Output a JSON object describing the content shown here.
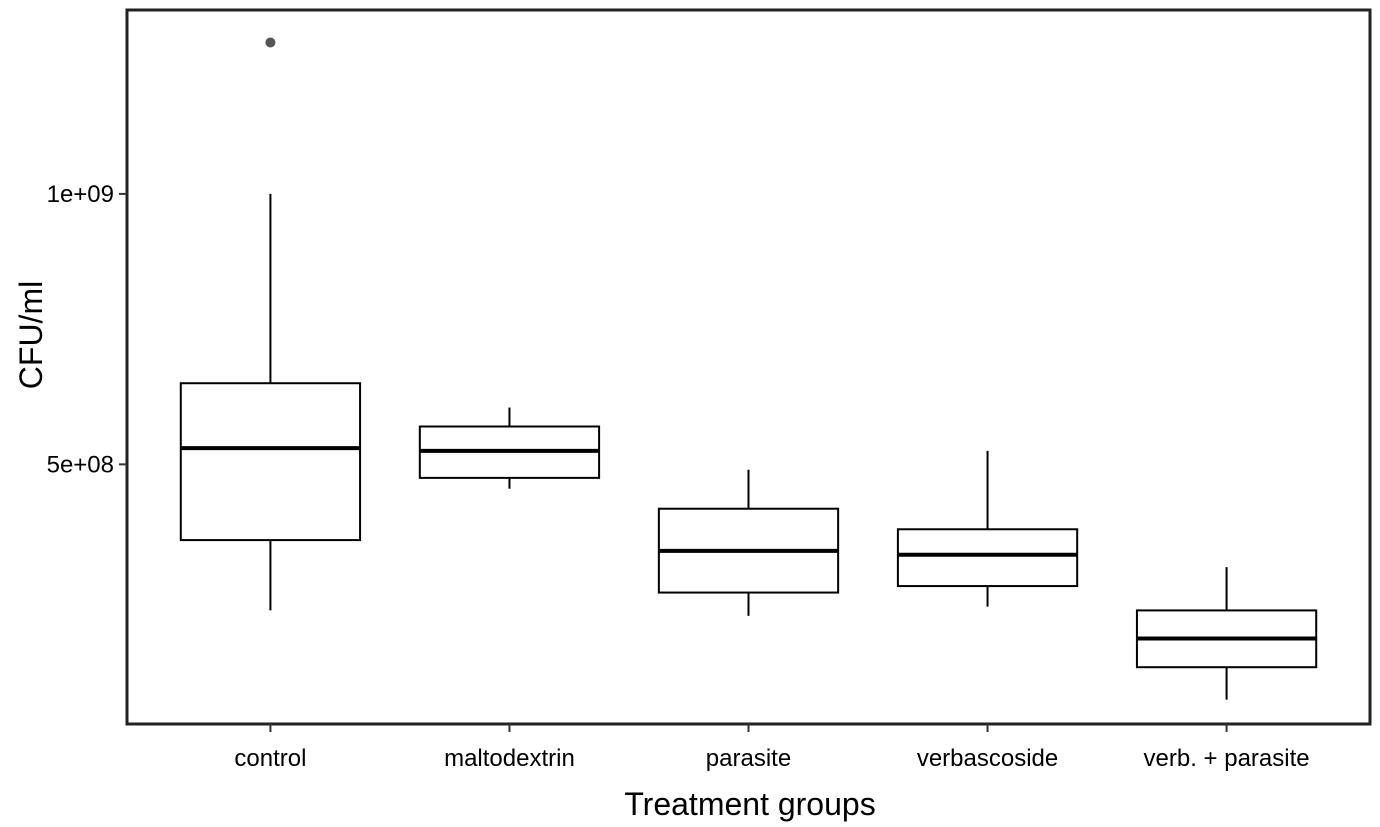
{
  "chart_data": {
    "type": "boxplot",
    "xlabel": "Treatment groups",
    "ylabel": "CFU/ml",
    "y_ticks": [
      {
        "value": 500000000,
        "label": "5e+08"
      },
      {
        "value": 1000000000,
        "label": "1e+09"
      }
    ],
    "ylim": [
      20000000,
      1340000000
    ],
    "grid": false,
    "categories": [
      "control",
      "maltodextrin",
      "parasite",
      "verbascoside",
      "verb. + parasite"
    ],
    "boxes": [
      {
        "category": "control",
        "whisker_low": 230000000,
        "q1": 360000000,
        "median": 530000000,
        "q3": 650000000,
        "whisker_high": 1000000000,
        "outliers": [
          1280000000
        ]
      },
      {
        "category": "maltodextrin",
        "whisker_low": 455000000,
        "q1": 475000000,
        "median": 525000000,
        "q3": 570000000,
        "whisker_high": 605000000,
        "outliers": []
      },
      {
        "category": "parasite",
        "whisker_low": 220000000,
        "q1": 263000000,
        "median": 340000000,
        "q3": 418000000,
        "whisker_high": 490000000,
        "outliers": []
      },
      {
        "category": "verbascoside",
        "whisker_low": 237000000,
        "q1": 275000000,
        "median": 333000000,
        "q3": 380000000,
        "whisker_high": 525000000,
        "outliers": []
      },
      {
        "category": "verb. + parasite",
        "whisker_low": 65000000,
        "q1": 125000000,
        "median": 178000000,
        "q3": 230000000,
        "whisker_high": 310000000,
        "outliers": []
      }
    ],
    "colors": {
      "box_fill": "#ffffff",
      "box_stroke": "#000000",
      "outlier": "#555555",
      "background": "#ffffff"
    }
  }
}
